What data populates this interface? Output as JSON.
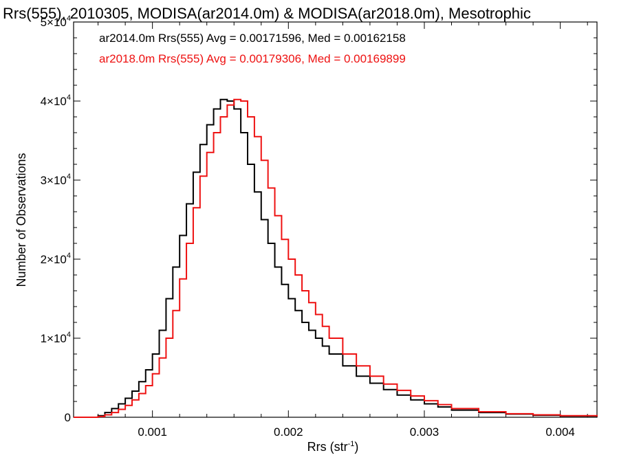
{
  "chart_data": {
    "type": "line",
    "title": "Rrs(555), 2010305, MODISA(ar2014.0m) & MODISA(ar2018.0m), Mesotrophic",
    "xlabel": "Rrs (str",
    "xlabel_sup": "-1",
    "xlabel_end": ")",
    "ylabel": "Number of Observations",
    "xlim": [
      0.00042,
      0.00427
    ],
    "ylim": [
      0,
      50000
    ],
    "x_ticks": [
      {
        "value": 0.001,
        "label": "0.001"
      },
      {
        "value": 0.002,
        "label": "0.002"
      },
      {
        "value": 0.003,
        "label": "0.003"
      },
      {
        "value": 0.004,
        "label": "0.004"
      }
    ],
    "y_ticks": [
      {
        "value": 0,
        "mant": "0",
        "exp": ""
      },
      {
        "value": 10000,
        "mant": "1×10",
        "exp": "4"
      },
      {
        "value": 20000,
        "mant": "2×10",
        "exp": "4"
      },
      {
        "value": 30000,
        "mant": "3×10",
        "exp": "4"
      },
      {
        "value": 40000,
        "mant": "4×10",
        "exp": "4"
      },
      {
        "value": 50000,
        "mant": "5×10",
        "exp": "4"
      }
    ],
    "legend": [
      {
        "text": "ar2014.0m Rrs(555) Avg = 0.00171596, Med = 0.00162158",
        "color": "#000000"
      },
      {
        "text": "ar2018.0m Rrs(555) Avg = 0.00179306, Med = 0.00169899",
        "color": "#ee1111"
      }
    ],
    "series": [
      {
        "color": "#000000",
        "x": [
          0.00042,
          0.0005,
          0.0006,
          0.00065,
          0.0007,
          0.00075,
          0.0008,
          0.00085,
          0.0009,
          0.00095,
          0.001,
          0.00105,
          0.0011,
          0.00115,
          0.0012,
          0.00125,
          0.0013,
          0.00135,
          0.0014,
          0.00145,
          0.0015,
          0.00155,
          0.0016,
          0.00165,
          0.0017,
          0.00175,
          0.0018,
          0.00185,
          0.0019,
          0.00195,
          0.002,
          0.00205,
          0.0021,
          0.00215,
          0.0022,
          0.00225,
          0.0023,
          0.0024,
          0.0025,
          0.0026,
          0.0027,
          0.0028,
          0.0029,
          0.003,
          0.0031,
          0.0032,
          0.0034,
          0.0036,
          0.0038,
          0.004,
          0.00427
        ],
        "y": [
          0,
          0,
          200,
          600,
          1100,
          1700,
          2400,
          3300,
          4500,
          6000,
          8000,
          11000,
          15000,
          19000,
          23000,
          27000,
          31000,
          34500,
          37000,
          39000,
          40200,
          40000,
          39000,
          36000,
          32000,
          28500,
          25000,
          22000,
          19000,
          16800,
          15000,
          13500,
          12000,
          11000,
          10000,
          9000,
          8000,
          6500,
          5200,
          4300,
          3500,
          2800,
          2200,
          1700,
          1300,
          900,
          600,
          400,
          250,
          150,
          50
        ]
      },
      {
        "color": "#ee1111",
        "x": [
          0.00042,
          0.0005,
          0.0006,
          0.00065,
          0.0007,
          0.00075,
          0.0008,
          0.00085,
          0.0009,
          0.00095,
          0.001,
          0.00105,
          0.0011,
          0.00115,
          0.0012,
          0.00125,
          0.0013,
          0.00135,
          0.0014,
          0.00145,
          0.0015,
          0.00155,
          0.0016,
          0.00165,
          0.0017,
          0.00175,
          0.0018,
          0.00185,
          0.0019,
          0.00195,
          0.002,
          0.00205,
          0.0021,
          0.00215,
          0.0022,
          0.00225,
          0.0023,
          0.0024,
          0.0025,
          0.0026,
          0.0027,
          0.0028,
          0.0029,
          0.003,
          0.0031,
          0.0032,
          0.0034,
          0.0036,
          0.0038,
          0.004,
          0.00427
        ],
        "y": [
          0,
          0,
          100,
          300,
          600,
          1000,
          1500,
          2200,
          3000,
          4000,
          5500,
          7500,
          10000,
          13500,
          17500,
          22000,
          26500,
          30500,
          33500,
          36000,
          38000,
          39500,
          40200,
          40000,
          38000,
          35500,
          32500,
          29000,
          25500,
          22500,
          20000,
          18000,
          16000,
          14500,
          13000,
          11500,
          10000,
          8000,
          6500,
          5200,
          4200,
          3400,
          2700,
          2100,
          1600,
          1100,
          700,
          450,
          300,
          200,
          100
        ]
      }
    ]
  }
}
